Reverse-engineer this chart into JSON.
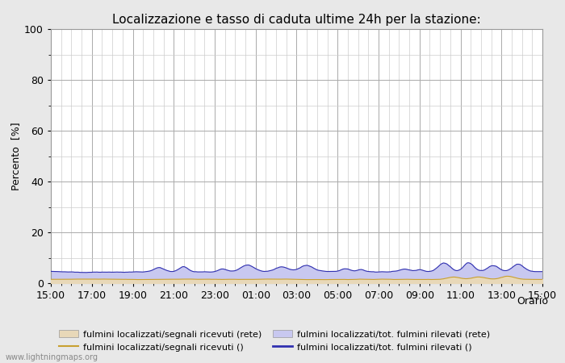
{
  "title": "Localizzazione e tasso di caduta ultime 24h per la stazione:",
  "xlabel": "Orario",
  "ylabel": "Percento  [%]",
  "ylim": [
    0,
    100
  ],
  "yticks_major": [
    0,
    20,
    40,
    60,
    80,
    100
  ],
  "yticks_minor": [
    10,
    30,
    50,
    70,
    90
  ],
  "xtick_labels": [
    "15:00",
    "17:00",
    "19:00",
    "21:00",
    "23:00",
    "01:00",
    "03:00",
    "05:00",
    "07:00",
    "09:00",
    "11:00",
    "13:00",
    "15:00"
  ],
  "n_points": 289,
  "background_color": "#e8e8e8",
  "plot_bg_color": "#ffffff",
  "grid_major_color": "#aaaaaa",
  "grid_minor_color": "#cccccc",
  "fill_blue_color": "#c8c8f0",
  "fill_yellow_color": "#e8d8b8",
  "line_blue_color": "#3030b0",
  "line_yellow_color": "#c8a030",
  "title_fontsize": 11,
  "axis_label_fontsize": 9,
  "tick_fontsize": 9,
  "legend_fontsize": 8,
  "watermark": "www.lightningmaps.org",
  "seed": 42
}
